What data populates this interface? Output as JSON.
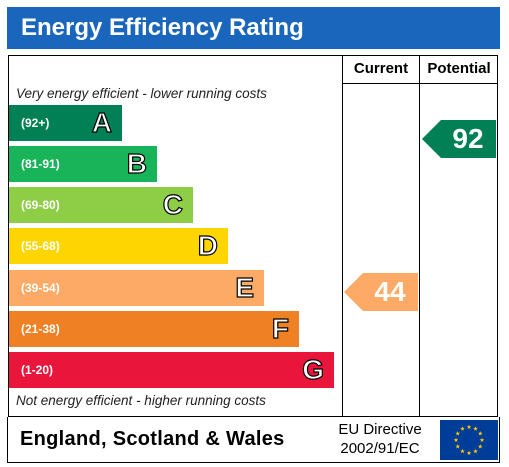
{
  "title": "Energy Efficiency Rating",
  "columns": {
    "current": "Current",
    "potential": "Potential"
  },
  "notes": {
    "top": "Very energy efficient - lower running costs",
    "bottom": "Not energy efficient - higher running costs"
  },
  "bands": [
    {
      "range": "(92+)",
      "letter": "A",
      "color": "#008054"
    },
    {
      "range": "(81-91)",
      "letter": "B",
      "color": "#19b459"
    },
    {
      "range": "(69-80)",
      "letter": "C",
      "color": "#8dce46"
    },
    {
      "range": "(55-68)",
      "letter": "D",
      "color": "#ffd500"
    },
    {
      "range": "(39-54)",
      "letter": "E",
      "color": "#fcaa65"
    },
    {
      "range": "(21-38)",
      "letter": "F",
      "color": "#ef8023"
    },
    {
      "range": "(1-20)",
      "letter": "G",
      "color": "#e9153b"
    }
  ],
  "current": {
    "value": "44",
    "band": "E",
    "color": "#fcaa65"
  },
  "potential": {
    "value": "92",
    "band": "A",
    "color": "#008054"
  },
  "footer": {
    "country": "England, Scotland & Wales",
    "directive_line1": "EU Directive",
    "directive_line2": "2002/91/EC"
  },
  "flag": {
    "name": "eu-flag-icon",
    "background": "#003d99",
    "stars": "#ffcc00"
  }
}
